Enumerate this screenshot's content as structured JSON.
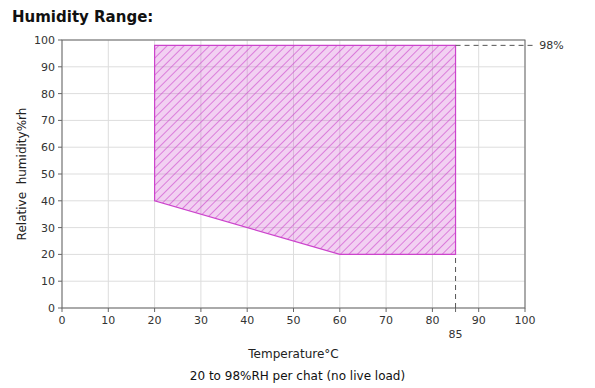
{
  "chart_data": {
    "type": "area",
    "title": "Humidity Range:",
    "subtitle": "20 to 98%RH per chat (no live load)",
    "xlabel": "Temperature°C",
    "ylabel": "Relative  humidity%rh",
    "x": [
      20,
      20,
      85,
      85,
      60,
      20
    ],
    "values": [
      98,
      98,
      98,
      20,
      20,
      40
    ],
    "color": "#cc44cc",
    "xlim": [
      0,
      100
    ],
    "ylim": [
      0,
      100
    ],
    "xticks": [
      0,
      10,
      20,
      30,
      40,
      50,
      60,
      70,
      80,
      90,
      100
    ],
    "yticks": [
      0,
      10,
      20,
      30,
      40,
      50,
      60,
      70,
      80,
      90,
      100
    ],
    "grid": true,
    "lines": [
      {
        "x": [
          85,
          102
        ],
        "y": [
          98,
          98
        ],
        "line_style": "dashed"
      },
      {
        "x": [
          85,
          85
        ],
        "y": [
          0,
          20
        ],
        "line_style": "dashed"
      }
    ],
    "annotations": [
      {
        "label": "98%",
        "y": 98
      },
      {
        "label": "85",
        "x": 85
      }
    ]
  }
}
